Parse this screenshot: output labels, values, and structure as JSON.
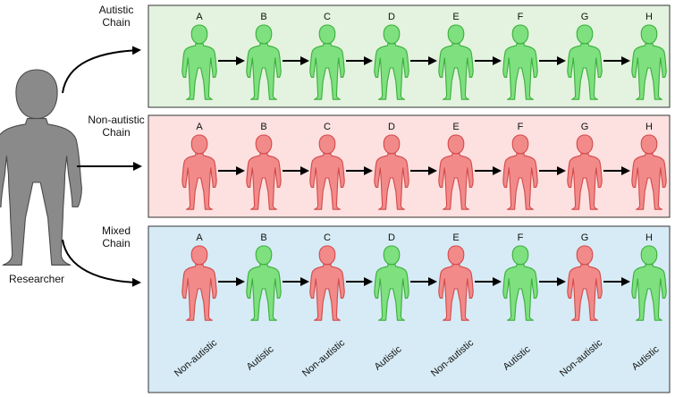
{
  "researcher": {
    "label": "Researcher"
  },
  "figure_labels": [
    "A",
    "B",
    "C",
    "D",
    "E",
    "F",
    "G",
    "H"
  ],
  "colors": {
    "autistic_fill": "#7ee07e",
    "autistic_stroke": "#3cae3c",
    "nonautistic_fill": "#f28a8a",
    "nonautistic_stroke": "#d24a4a",
    "researcher_fill": "#8a8a8a",
    "researcher_stroke": "#4a4a4a"
  },
  "chains": [
    {
      "title": [
        "Autistic",
        "Chain"
      ],
      "background": "#e3f3df",
      "members": [
        "autistic",
        "autistic",
        "autistic",
        "autistic",
        "autistic",
        "autistic",
        "autistic",
        "autistic"
      ]
    },
    {
      "title": [
        "Non-autistic",
        "Chain"
      ],
      "background": "#fde0e0",
      "members": [
        "nonautistic",
        "nonautistic",
        "nonautistic",
        "nonautistic",
        "nonautistic",
        "nonautistic",
        "nonautistic",
        "nonautistic"
      ]
    },
    {
      "title": [
        "Mixed",
        "Chain"
      ],
      "background": "#d6ebf5",
      "members": [
        "nonautistic",
        "autistic",
        "nonautistic",
        "autistic",
        "nonautistic",
        "autistic",
        "nonautistic",
        "autistic"
      ],
      "member_labels": [
        "Non-autistic",
        "Autistic",
        "Non-autistic",
        "Autistic",
        "Non-autistic",
        "Autistic",
        "Non-autistic",
        "Autistic"
      ]
    }
  ]
}
